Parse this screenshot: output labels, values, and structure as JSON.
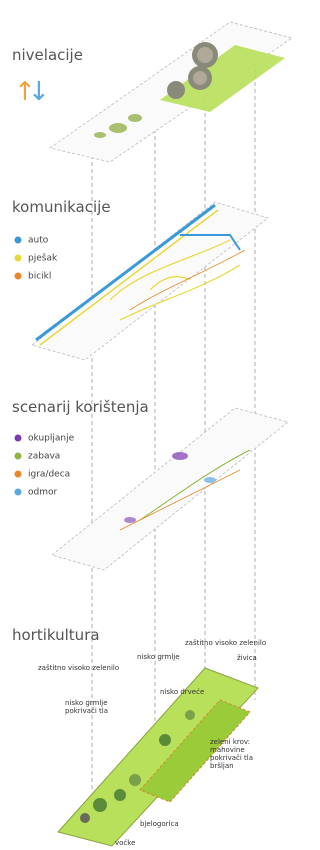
{
  "sections": [
    {
      "title": "nivelacije"
    },
    {
      "title": "komunikacije",
      "legend": [
        {
          "label": "auto",
          "color": "#3a9ad9"
        },
        {
          "label": "pješak",
          "color": "#e8d83a"
        },
        {
          "label": "bicikl",
          "color": "#e8862a"
        }
      ]
    },
    {
      "title": "scenarij korištenja",
      "legend": [
        {
          "label": "okupljanje",
          "color": "#7a3ab0"
        },
        {
          "label": "zabava",
          "color": "#8bb83a"
        },
        {
          "label": "igra/deca",
          "color": "#e8862a"
        },
        {
          "label": "odmor",
          "color": "#5aa8e0"
        }
      ]
    },
    {
      "title": "hortikultura",
      "labels": [
        {
          "lines": [
            "zaštitno visoko zelenilo"
          ]
        },
        {
          "lines": [
            "nisko grmlje"
          ]
        },
        {
          "lines": [
            "živica"
          ]
        },
        {
          "lines": [
            "zaštitno visoko zelenilo"
          ]
        },
        {
          "lines": [
            "nisko drveće"
          ]
        },
        {
          "lines": [
            "nisko grmlje",
            "pokrivači tla"
          ]
        },
        {
          "lines": [
            "zeleni krov:",
            "mahovine",
            "pokrivači tla",
            "bršljan"
          ]
        },
        {
          "lines": [
            "bjelogorica"
          ]
        },
        {
          "lines": [
            "voćke"
          ]
        }
      ]
    }
  ]
}
